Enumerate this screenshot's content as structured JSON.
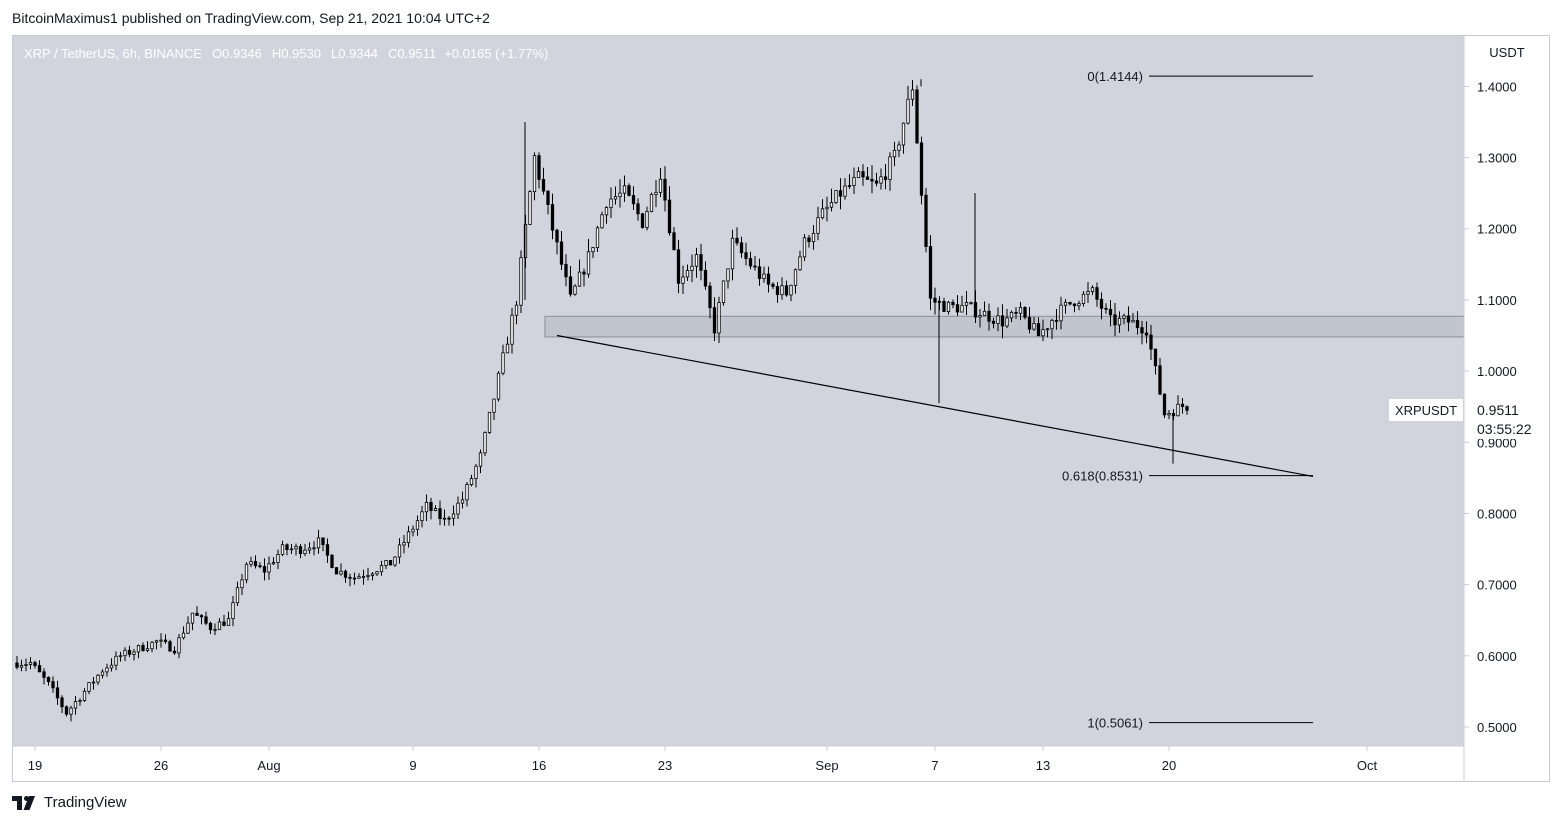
{
  "publisher_line": "BitcoinMaximus1 published on TradingView.com, Sep 21, 2021 10:04 UTC+2",
  "footer_brand": "TradingView",
  "colors": {
    "plot_bg": "#d1d4dc",
    "axis_bg": "#ffffff",
    "candle": "#000000",
    "text": "#131722",
    "legend_text": "#ffffff",
    "zone_fill": "rgba(180,184,194,0.55)",
    "zone_stroke": "#8a8e99"
  },
  "chart_data": {
    "type": "candlestick",
    "symbol_legend": {
      "symbol": "XRP / TetherUS, 6h, BINANCE",
      "open_label": "O",
      "open": "0.9346",
      "high_label": "H",
      "high": "0.9530",
      "low_label": "L",
      "low": "0.9344",
      "close_label": "C",
      "close": "0.9511",
      "change": "+0.0165 (+1.77%)"
    },
    "currency": "USDT",
    "ylim": [
      0.4733,
      1.4708
    ],
    "y_ticks": [
      "1.4000",
      "1.3000",
      "1.2000",
      "1.1000",
      "1.0000",
      "0.9000",
      "0.8000",
      "0.7000",
      "0.6000",
      "0.5000"
    ],
    "x_ticks": [
      "19",
      "26",
      "Aug",
      "9",
      "16",
      "23",
      "Sep",
      "7",
      "13",
      "20",
      "Oct"
    ],
    "price_label": {
      "symbol": "XRPUSDT",
      "price": "0.9511",
      "countdown": "03:55:22"
    },
    "fib_levels": [
      {
        "label": "0(1.4144)",
        "value": 1.4144
      },
      {
        "label": "0.618(0.8531)",
        "value": 0.8531
      },
      {
        "label": "1(0.5061)",
        "value": 0.5061
      }
    ],
    "support_zone": [
      1.048,
      1.077
    ],
    "trendline": {
      "from": [
        "2021-08-17",
        1.05
      ],
      "to": [
        "2021-09-28",
        0.852
      ]
    },
    "price_path": [
      [
        "2021-07-18",
        0.59
      ],
      [
        "2021-07-19",
        0.59
      ],
      [
        "2021-07-20",
        0.56
      ],
      [
        "2021-07-21",
        0.52
      ],
      [
        "2021-07-22",
        0.55
      ],
      [
        "2021-07-23",
        0.58
      ],
      [
        "2021-07-24",
        0.6
      ],
      [
        "2021-07-25",
        0.61
      ],
      [
        "2021-07-26",
        0.62
      ],
      [
        "2021-07-27",
        0.61
      ],
      [
        "2021-07-28",
        0.66
      ],
      [
        "2021-07-29",
        0.64
      ],
      [
        "2021-07-30",
        0.65
      ],
      [
        "2021-07-31",
        0.73
      ],
      [
        "2021-08-01",
        0.72
      ],
      [
        "2021-08-02",
        0.75
      ],
      [
        "2021-08-03",
        0.75
      ],
      [
        "2021-08-04",
        0.76
      ],
      [
        "2021-08-05",
        0.72
      ],
      [
        "2021-08-06",
        0.71
      ],
      [
        "2021-08-07",
        0.72
      ],
      [
        "2021-08-08",
        0.73
      ],
      [
        "2021-08-09",
        0.77
      ],
      [
        "2021-08-10",
        0.81
      ],
      [
        "2021-08-11",
        0.79
      ],
      [
        "2021-08-12",
        0.82
      ],
      [
        "2021-08-13",
        0.88
      ],
      [
        "2021-08-14",
        0.99
      ],
      [
        "2021-08-15",
        1.1
      ],
      [
        "2021-08-16",
        1.3
      ],
      [
        "2021-08-17",
        1.2
      ],
      [
        "2021-08-18",
        1.1
      ],
      [
        "2021-08-19",
        1.16
      ],
      [
        "2021-08-20",
        1.24
      ],
      [
        "2021-08-21",
        1.25
      ],
      [
        "2021-08-22",
        1.21
      ],
      [
        "2021-08-23",
        1.28
      ],
      [
        "2021-08-24",
        1.13
      ],
      [
        "2021-08-25",
        1.16
      ],
      [
        "2021-08-26",
        1.06
      ],
      [
        "2021-08-27",
        1.18
      ],
      [
        "2021-08-28",
        1.15
      ],
      [
        "2021-08-29",
        1.12
      ],
      [
        "2021-08-30",
        1.11
      ],
      [
        "2021-08-31",
        1.18
      ],
      [
        "2021-09-01",
        1.22
      ],
      [
        "2021-09-02",
        1.25
      ],
      [
        "2021-09-03",
        1.27
      ],
      [
        "2021-09-04",
        1.26
      ],
      [
        "2021-09-05",
        1.3
      ],
      [
        "2021-09-06",
        1.4
      ],
      [
        "2021-09-07",
        1.1
      ],
      [
        "2021-09-08",
        1.09
      ],
      [
        "2021-09-09",
        1.09
      ],
      [
        "2021-09-10",
        1.08
      ],
      [
        "2021-09-11",
        1.07
      ],
      [
        "2021-09-12",
        1.08
      ],
      [
        "2021-09-13",
        1.05
      ],
      [
        "2021-09-14",
        1.08
      ],
      [
        "2021-09-15",
        1.1
      ],
      [
        "2021-09-16",
        1.11
      ],
      [
        "2021-09-17",
        1.07
      ],
      [
        "2021-09-18",
        1.07
      ],
      [
        "2021-09-19",
        1.06
      ],
      [
        "2021-09-20",
        0.94
      ],
      [
        "2021-09-21",
        0.9511
      ]
    ],
    "annotations": {
      "swing_high": [
        "2021-09-06",
        1.41
      ],
      "high_aug": [
        "2021-08-15",
        1.35
      ],
      "wick_low_sep7": [
        "2021-09-07",
        0.955
      ],
      "wick_low_sep20": [
        "2021-09-20",
        0.87
      ],
      "wick_high_sep9": [
        "2021-09-09",
        1.25
      ]
    }
  }
}
